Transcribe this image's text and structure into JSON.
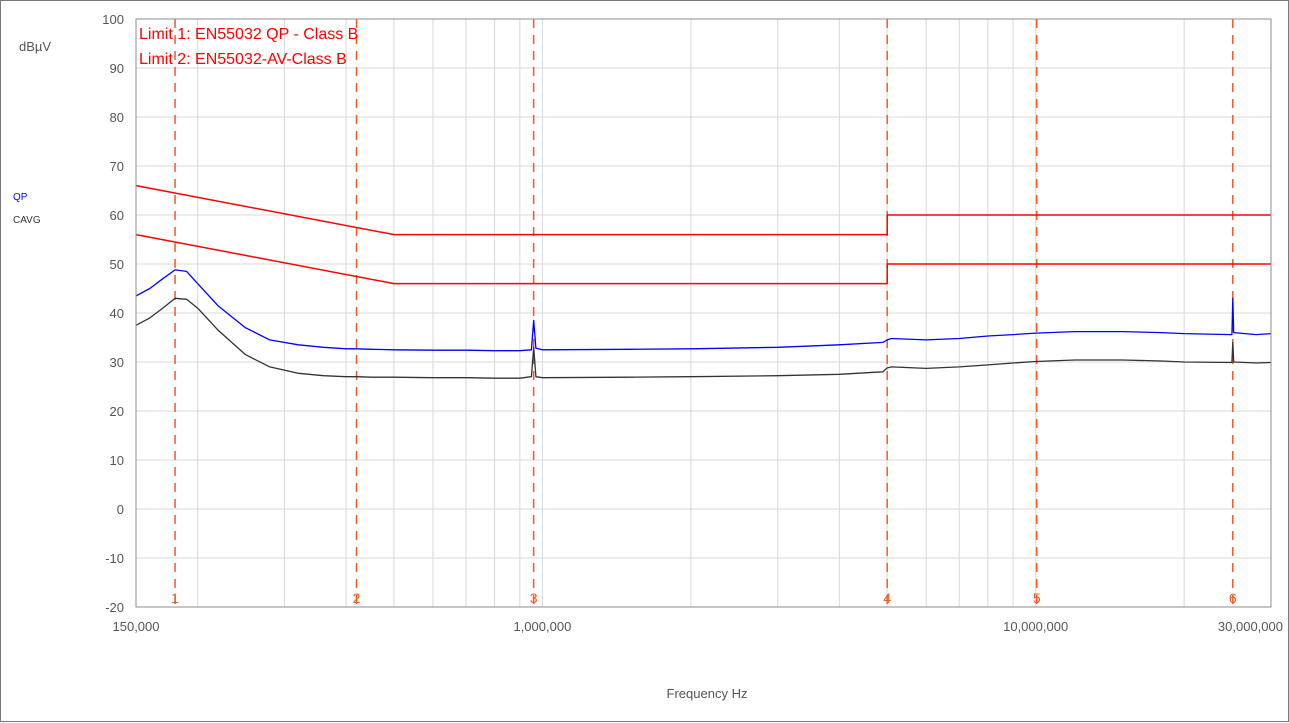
{
  "chart_data": {
    "type": "line",
    "x_scale": "log",
    "xlabel": "Frequency Hz",
    "ylabel": "dBµV",
    "xlim": [
      150000,
      30000000
    ],
    "ylim": [
      -20,
      100
    ],
    "grid": true,
    "y_ticks": [
      -20,
      -10,
      0,
      10,
      20,
      30,
      40,
      50,
      60,
      70,
      80,
      90,
      100
    ],
    "x_tick_labels": [
      {
        "value": 150000,
        "label": "150,000"
      },
      {
        "value": 1000000,
        "label": "1,000,000"
      },
      {
        "value": 10000000,
        "label": "10,000,000"
      },
      {
        "value": 30000000,
        "label": "30,000,000"
      }
    ],
    "legend": [
      {
        "label": "Limit 1: EN55032 QP - Class B",
        "color": "#ff0000"
      },
      {
        "label": "Limit 2: EN55032-AV-Class B",
        "color": "#ff0000"
      }
    ],
    "trace_labels": [
      {
        "label": "QP",
        "color": "#0000ff"
      },
      {
        "label": "CAVG",
        "color": "#333333"
      }
    ],
    "markers": [
      {
        "label": "1",
        "x": 180000
      },
      {
        "label": "2",
        "x": 420000
      },
      {
        "label": "3",
        "x": 960000
      },
      {
        "label": "4",
        "x": 5000000
      },
      {
        "label": "5",
        "x": 10050000
      },
      {
        "label": "6",
        "x": 25100000
      }
    ],
    "series": [
      {
        "name": "Limit 1: EN55032 QP - Class B",
        "color": "#ff0000",
        "x": [
          150000,
          500000,
          500000,
          5000000,
          5000000,
          30000000
        ],
        "y": [
          66,
          56,
          56,
          56,
          60,
          60
        ]
      },
      {
        "name": "Limit 2: EN55032-AV-Class B",
        "color": "#ff0000",
        "x": [
          150000,
          500000,
          500000,
          5000000,
          5000000,
          30000000
        ],
        "y": [
          56,
          46,
          46,
          46,
          50,
          50
        ]
      },
      {
        "name": "QP",
        "color": "#0000ff",
        "x": [
          150000,
          160000,
          170000,
          180000,
          190000,
          200000,
          220000,
          250000,
          280000,
          320000,
          360000,
          400000,
          420000,
          450000,
          500000,
          600000,
          700000,
          800000,
          900000,
          950000,
          960000,
          970000,
          1000000,
          1500000,
          2000000,
          3000000,
          4000000,
          4900000,
          5000000,
          5100000,
          6000000,
          7000000,
          8000000,
          9000000,
          10000000,
          12000000,
          15000000,
          18000000,
          20000000,
          25000000,
          25100000,
          25200000,
          28000000,
          30000000
        ],
        "y": [
          43.5,
          45,
          47,
          48.8,
          48.5,
          46,
          41.5,
          37,
          34.5,
          33.5,
          33,
          32.7,
          32.7,
          32.6,
          32.5,
          32.4,
          32.4,
          32.3,
          32.3,
          32.5,
          38.5,
          32.8,
          32.5,
          32.6,
          32.7,
          33,
          33.5,
          34,
          34.5,
          34.8,
          34.5,
          34.8,
          35.3,
          35.6,
          35.9,
          36.2,
          36.2,
          36,
          35.8,
          35.6,
          43,
          36,
          35.6,
          35.8
        ]
      },
      {
        "name": "CAVG",
        "color": "#333333",
        "x": [
          150000,
          160000,
          170000,
          180000,
          190000,
          200000,
          220000,
          250000,
          280000,
          320000,
          360000,
          400000,
          420000,
          450000,
          500000,
          600000,
          700000,
          800000,
          900000,
          950000,
          960000,
          970000,
          1000000,
          1500000,
          2000000,
          3000000,
          4000000,
          4900000,
          5000000,
          5100000,
          6000000,
          7000000,
          8000000,
          9000000,
          10000000,
          12000000,
          15000000,
          18000000,
          20000000,
          25000000,
          25100000,
          25200000,
          28000000,
          30000000
        ],
        "y": [
          37.5,
          39,
          41,
          43,
          42.8,
          41,
          36.5,
          31.5,
          29,
          27.7,
          27.2,
          27,
          27,
          26.9,
          26.9,
          26.8,
          26.8,
          26.7,
          26.7,
          27,
          33,
          27,
          26.8,
          26.9,
          27,
          27.2,
          27.5,
          28,
          28.8,
          29,
          28.7,
          29,
          29.4,
          29.8,
          30.1,
          30.4,
          30.4,
          30.2,
          30,
          29.9,
          34,
          30,
          29.8,
          29.9
        ]
      }
    ]
  }
}
